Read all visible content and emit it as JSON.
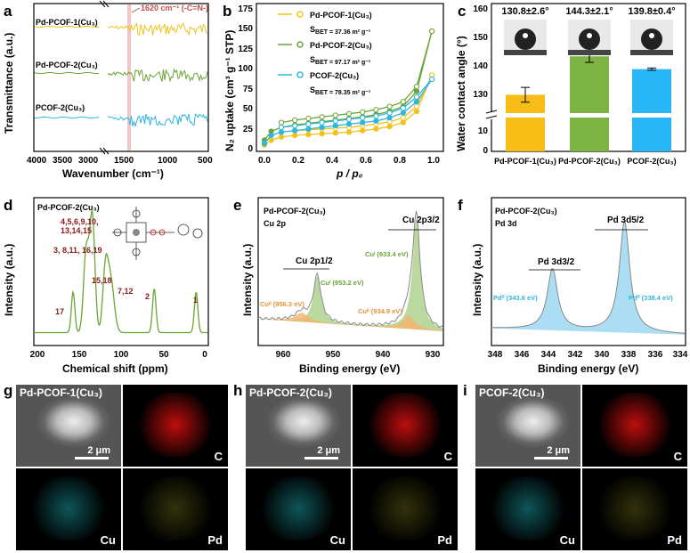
{
  "panels": {
    "a": {
      "letter": "a",
      "xlabel": "Wavenumber (cm⁻¹)",
      "ylabel": "Transmittance (a.u.)",
      "xticks": [
        "4000",
        "3500",
        "3000",
        "1500",
        "1000",
        "500"
      ],
      "series": [
        "Pd-PCOF-1(Cu₃)",
        "Pd-PCOF-2(Cu₃)",
        "PCOF-2(Cu₃)"
      ],
      "annotation": "1620 cm⁻¹ (-C=N-)",
      "colors": [
        "#f2c21b",
        "#6aa536",
        "#2fb6e0"
      ]
    },
    "b": {
      "letter": "b",
      "xlabel": "p / p₀",
      "ylabel": "N₂ uptake (cm³ g⁻¹ STP)",
      "xticks": [
        "0.0",
        "0.2",
        "0.4",
        "0.6",
        "0.8",
        "1.0"
      ],
      "yticks": [
        "0",
        "25",
        "50",
        "75",
        "100",
        "125",
        "150",
        "175"
      ],
      "legend": [
        {
          "name": "Pd-PCOF-1(Cu₃)",
          "sbet": "S",
          "sbetval": "BET = 37.36 m² g⁻¹",
          "color": "#f2c21b"
        },
        {
          "name": "Pd-PCOF-2(Cu₃)",
          "sbet": "S",
          "sbetval": "BET = 97.17 m² g⁻¹",
          "color": "#6aa536"
        },
        {
          "name": "PCOF-2(Cu₃)",
          "sbet": "S",
          "sbetval": "BET = 78.35 m² g⁻¹",
          "color": "#2fb6e0"
        }
      ]
    },
    "c": {
      "letter": "c",
      "ylabel": "Water contact angle (°)",
      "yticks_top": [
        "130",
        "140",
        "150",
        "160"
      ],
      "yticks_bottom": [
        "0",
        "10"
      ],
      "bars": [
        {
          "name": "Pd-PCOF-1(Cu₃)",
          "angle": "130.8±2.6°",
          "value": 130.8,
          "err": 2.6,
          "color": "#f7bd16"
        },
        {
          "name": "Pd-PCOF-2(Cu₃)",
          "angle": "144.3±2.1°",
          "value": 144.3,
          "err": 2.1,
          "color": "#7cb342"
        },
        {
          "name": "PCOF-2(Cu₃)",
          "angle": "139.8±0.4°",
          "value": 139.8,
          "err": 0.4,
          "color": "#29b6f6"
        }
      ]
    },
    "d": {
      "letter": "d",
      "title": "Pd-PCOF-2(Cu₃)",
      "xlabel": "Chemical shift (ppm)",
      "ylabel": "Intensity (a.u.)",
      "xticks": [
        "200",
        "150",
        "100",
        "50",
        "0"
      ],
      "peaks": [
        "4,5,6,9,10,",
        "13,14,15",
        "3, 8,11, 16,19",
        "15,18",
        "7,12",
        "17",
        "2",
        "1"
      ]
    },
    "e": {
      "letter": "e",
      "title": "Pd-PCOF-2(Cu₃)",
      "subtitle": "Cu 2p",
      "xlabel": "Binding energy (eV)",
      "ylabel": "Intensity (a.u.)",
      "xticks": [
        "960",
        "950",
        "940",
        "930"
      ],
      "labels": [
        "Cu 2p1/2",
        "Cu 2p3/2",
        "Cuᴵ (953.2 eV)",
        "Cuᴵ (933.4 eV)",
        "Cuᴵᴵ (956.3 eV)",
        "Cuᴵᴵ (934.9 eV)"
      ]
    },
    "f": {
      "letter": "f",
      "title": "Pd-PCOF-2(Cu₃)",
      "subtitle": "Pd 3d",
      "xlabel": "Binding energy (eV)",
      "ylabel": "Intensity (a.u.)",
      "xticks": [
        "348",
        "346",
        "344",
        "342",
        "340",
        "338",
        "336",
        "334"
      ],
      "labels": [
        "Pd 3d3/2",
        "Pd 3d5/2",
        "Pd⁰ (343.6 eV)",
        "Pd⁰ (338.4 eV)"
      ]
    },
    "g": {
      "letter": "g",
      "title": "Pd-PCOF-1(Cu₃)",
      "scale": "2 μm",
      "maps": [
        "C",
        "Cu",
        "Pd"
      ]
    },
    "h": {
      "letter": "h",
      "title": "Pd-PCOF-2(Cu₃)",
      "scale": "2 μm",
      "maps": [
        "C",
        "Cu",
        "Pd"
      ]
    },
    "i": {
      "letter": "i",
      "title": "PCOF-2(Cu₃)",
      "scale": "2 μm",
      "maps": [
        "C",
        "Cu",
        "Pd"
      ]
    }
  }
}
